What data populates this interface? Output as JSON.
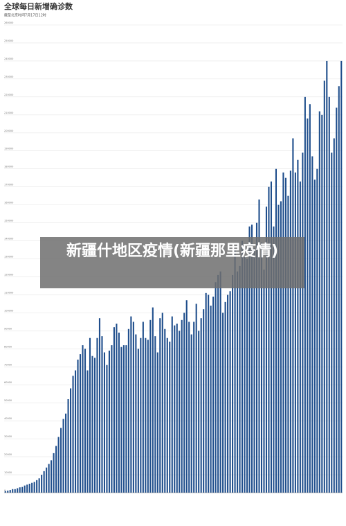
{
  "chart_data": {
    "type": "bar",
    "title": "全球每日新增确诊数",
    "subtitle": "截至北京时间7月17日12时",
    "color": "#1f4e8c",
    "grid": true,
    "ylim": [
      0,
      260000
    ],
    "yticks": [
      0,
      10000,
      20000,
      30000,
      40000,
      50000,
      60000,
      70000,
      80000,
      90000,
      100000,
      110000,
      120000,
      130000,
      140000,
      150000,
      160000,
      170000,
      180000,
      190000,
      200000,
      210000,
      220000,
      230000,
      240000,
      250000,
      260000
    ],
    "values": [
      1000,
      1200,
      1500,
      2000,
      2000,
      2500,
      3000,
      3200,
      4000,
      4500,
      5000,
      5500,
      6000,
      7000,
      8000,
      10000,
      12000,
      14000,
      16000,
      18000,
      22000,
      26000,
      31000,
      36000,
      41000,
      44000,
      52000,
      58000,
      65000,
      68000,
      74000,
      77000,
      82000,
      80000,
      68000,
      86000,
      76000,
      75000,
      86000,
      97000,
      87000,
      78000,
      71000,
      79000,
      82000,
      92000,
      94000,
      89000,
      81000,
      82000,
      82000,
      91000,
      98000,
      95000,
      88000,
      80000,
      86000,
      95000,
      86000,
      85000,
      96000,
      103000,
      87000,
      78000,
      97000,
      100000,
      91000,
      86000,
      84000,
      98000,
      93000,
      94000,
      90000,
      96000,
      100000,
      107000,
      95000,
      88000,
      95000,
      105000,
      90000,
      97000,
      102000,
      111000,
      110000,
      104000,
      109000,
      117000,
      121000,
      123000,
      100000,
      106000,
      110000,
      112000,
      121000,
      135000,
      123000,
      126000,
      140000,
      131000,
      130000,
      148000,
      149000,
      136000,
      150000,
      163000,
      139000,
      124000,
      159000,
      170000,
      173000,
      148000,
      180000,
      160000,
      162000,
      178000,
      175000,
      165000,
      179000,
      197000,
      178000,
      185000,
      173000,
      189000,
      220000,
      208000,
      216000,
      187000,
      174000,
      180000,
      212000,
      210000,
      229000,
      240000,
      220000,
      189000,
      197000,
      214000,
      226000,
      240000
    ]
  },
  "overlay": {
    "title": "新疆什地区疫情(新疆那里疫情)"
  }
}
